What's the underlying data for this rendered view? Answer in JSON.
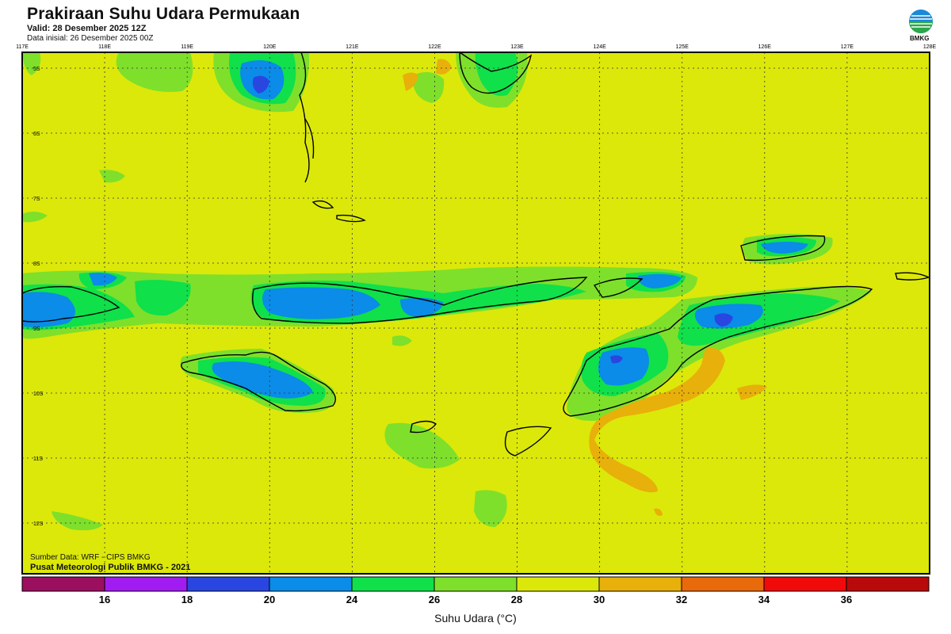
{
  "header": {
    "title": "Prakiraan Suhu Udara Permukaan",
    "valid": "Valid: 28 Desember 2025 12Z",
    "init": "Data inisial: 26 Desember 2025 00Z",
    "logo_text": "BMKG"
  },
  "map": {
    "lon_ticks": [
      "117E",
      "118E",
      "119E",
      "120E",
      "121E",
      "122E",
      "123E",
      "124E",
      "125E",
      "126E",
      "127E",
      "128E"
    ],
    "lat_ticks": [
      "5S",
      "6S",
      "7S",
      "8S",
      "9S",
      "10S",
      "11S",
      "12S"
    ],
    "background_color": "#dce80a",
    "colors": {
      "lt16": "#9c0f5f",
      "c16_18": "#a01cf0",
      "c18_20": "#2a46e0",
      "c20_24": "#0a8ce8",
      "c24_26": "#10e04a",
      "c26_28": "#7ee02a",
      "c28_30": "#dce80a",
      "c30_32": "#e8b00a",
      "c32_34": "#e86a0a",
      "c34_36": "#f00a0a",
      "gt36": "#b80a0a"
    }
  },
  "footer": {
    "source": "Sumber Data: WRF - CIPS BMKG",
    "org": "Pusat Meteorologi Publik BMKG - 2021"
  },
  "colorbar": {
    "title": "Suhu Udara (°C)",
    "labels": [
      "16",
      "18",
      "20",
      "24",
      "26",
      "28",
      "30",
      "32",
      "34",
      "36"
    ],
    "colors": [
      "#9c0f5f",
      "#a01cf0",
      "#2a46e0",
      "#0a8ce8",
      "#10e04a",
      "#7ee02a",
      "#dce80a",
      "#e8b00a",
      "#e86a0a",
      "#f00a0a",
      "#b80a0a"
    ]
  }
}
